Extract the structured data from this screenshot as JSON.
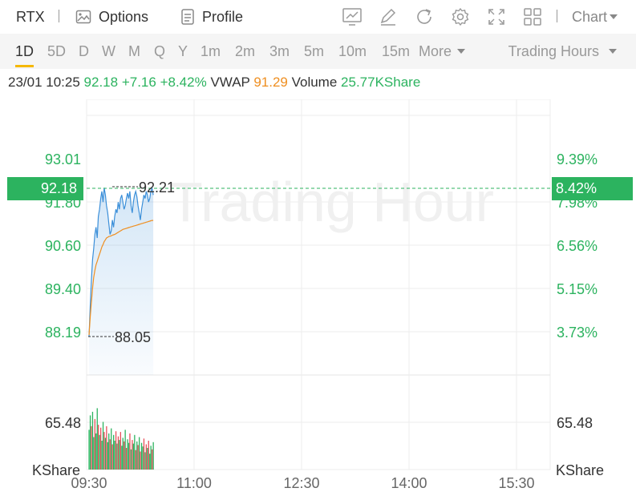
{
  "toolbar": {
    "symbol": "RTX",
    "options_label": "Options",
    "profile_label": "Profile",
    "icons": [
      "line-chart-icon",
      "pen-icon",
      "refresh-icon",
      "settings-icon",
      "fullscreen-icon",
      "grid-icon"
    ],
    "chart_menu_label": "Chart"
  },
  "periods": {
    "items": [
      "1D",
      "5D",
      "D",
      "W",
      "M",
      "Q",
      "Y",
      "1m",
      "2m",
      "3m",
      "5m",
      "10m",
      "15m",
      "More"
    ],
    "active": "1D",
    "trading_hours_label": "Trading Hours"
  },
  "info": {
    "datetime": "23/01 10:25",
    "price": "92.18",
    "change": "+7.16",
    "change_pct": "+8.42%",
    "vwap_label": "VWAP",
    "vwap_value": "91.29",
    "volume_label": "Volume",
    "volume_value": "25.77KShare"
  },
  "chart": {
    "watermark": "Trading Hour",
    "price_axis": [
      "93.01",
      "91.80",
      "90.60",
      "89.40",
      "88.19"
    ],
    "pct_axis": [
      "9.39%",
      "7.98%",
      "6.56%",
      "5.15%",
      "3.73%"
    ],
    "current_price_tag": "92.18",
    "current_pct_tag": "8.42%",
    "high_label": "92.21",
    "low_label": "88.05",
    "volume_axis_left": "65.48",
    "volume_axis_right": "65.48",
    "volume_unit_left": "KShare",
    "volume_unit_right": "KShare",
    "time_axis": [
      "09:30",
      "11:00",
      "12:30",
      "14:00",
      "15:30"
    ]
  },
  "colors": {
    "up": "#2cb35f",
    "down": "#e8505b",
    "price_line": "#3b8fd9",
    "vwap_line": "#ef8f21",
    "accent": "#f5b800"
  },
  "chart_data": {
    "type": "line",
    "x_range": [
      "09:30",
      "16:00"
    ],
    "price_range": [
      88.19,
      93.01
    ],
    "high": 92.21,
    "low": 88.05,
    "last_time": "10:25",
    "price": [
      88.05,
      88.9,
      89.6,
      90.2,
      90.5,
      90.9,
      91.1,
      90.8,
      91.4,
      91.6,
      91.9,
      92.1,
      91.8,
      92.2,
      92.0,
      91.7,
      91.5,
      91.2,
      90.9,
      91.0,
      91.3,
      91.1,
      91.4,
      91.6,
      91.5,
      91.8,
      91.6,
      91.9,
      92.0,
      91.8,
      91.6,
      91.7,
      91.9,
      92.05,
      91.9,
      92.1,
      91.7,
      91.5,
      91.8,
      92.0,
      92.1,
      91.95,
      91.7,
      91.5,
      91.3,
      91.6,
      91.8,
      92.0,
      91.9,
      92.1,
      92.0,
      91.8,
      91.9,
      92.1,
      92.18,
      92.0
    ],
    "vwap": [
      88.1,
      88.6,
      89.0,
      89.4,
      89.7,
      89.9,
      90.05,
      90.15,
      90.25,
      90.35,
      90.45,
      90.55,
      90.62,
      90.7,
      90.75,
      90.8,
      90.82,
      90.84,
      90.85,
      90.86,
      90.88,
      90.89,
      90.9,
      90.92,
      90.94,
      90.96,
      90.98,
      91.0,
      91.02,
      91.04,
      91.05,
      91.06,
      91.07,
      91.08,
      91.09,
      91.1,
      91.11,
      91.12,
      91.13,
      91.14,
      91.15,
      91.16,
      91.17,
      91.18,
      91.19,
      91.2,
      91.21,
      91.22,
      91.23,
      91.24,
      91.25,
      91.26,
      91.27,
      91.28,
      91.29,
      91.29
    ],
    "volume_ref": 65.48,
    "volume": [
      55,
      75,
      60,
      80,
      45,
      70,
      50,
      85,
      62,
      48,
      58,
      40,
      66,
      52,
      44,
      60,
      38,
      50,
      42,
      57,
      35,
      48,
      40,
      53,
      36,
      46,
      41,
      52,
      33,
      44,
      39,
      55,
      30,
      42,
      37,
      50,
      28,
      41,
      36,
      48,
      27,
      39,
      34,
      45,
      25,
      37,
      32,
      43,
      24,
      35,
      30,
      40,
      22,
      33,
      28,
      38
    ],
    "volume_up": [
      1,
      1,
      0,
      1,
      1,
      0,
      1,
      1,
      0,
      1,
      0,
      1,
      1,
      0,
      1,
      0,
      1,
      1,
      0,
      1,
      0,
      1,
      1,
      0,
      1,
      0,
      1,
      0,
      1,
      1,
      0,
      1,
      0,
      1,
      1,
      0,
      1,
      0,
      1,
      1,
      0,
      1,
      0,
      1,
      0,
      1,
      1,
      0,
      1,
      0,
      1,
      0,
      1,
      1,
      0,
      1
    ]
  }
}
